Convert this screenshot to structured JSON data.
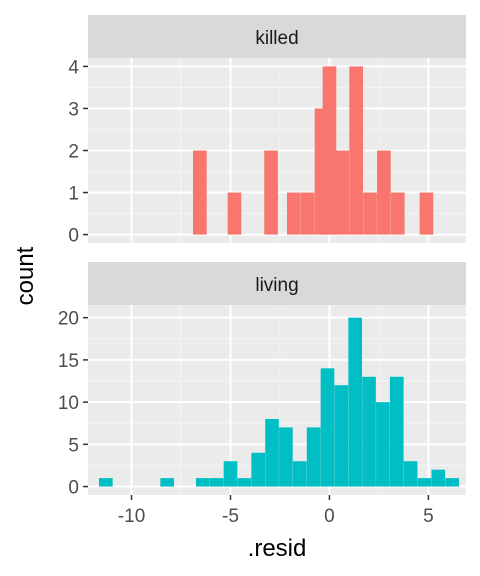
{
  "chart_data": {
    "type": "bar",
    "subtype": "faceted-histogram",
    "xlabel": ".resid",
    "ylabel": "count",
    "xlim": [
      -12.2,
      6.9
    ],
    "x_ticks": [
      -10,
      -5,
      0,
      5
    ],
    "x_tick_labels": [
      "-10",
      "-5",
      "0",
      "5"
    ],
    "bin_width": 0.69,
    "grid": true,
    "panel_background": "#ebebeb",
    "strip_background": "#d9d9d9",
    "facets": [
      {
        "label": "killed",
        "color": "#f8766d",
        "ylim": [
          -0.2,
          4.2
        ],
        "y_ticks": [
          0,
          1,
          2,
          3,
          4
        ],
        "y_tick_labels": [
          "0",
          "1",
          "2",
          "3",
          "4"
        ],
        "bins": [
          {
            "x": -6.55,
            "count": 2
          },
          {
            "x": -4.8,
            "count": 1
          },
          {
            "x": -2.95,
            "count": 2
          },
          {
            "x": -1.8,
            "count": 1
          },
          {
            "x": -1.1,
            "count": 1
          },
          {
            "x": -0.4,
            "count": 3
          },
          {
            "x": 0.0,
            "count": 4
          },
          {
            "x": 0.65,
            "count": 2
          },
          {
            "x": 1.35,
            "count": 4
          },
          {
            "x": 2.05,
            "count": 1
          },
          {
            "x": 2.75,
            "count": 2
          },
          {
            "x": 3.45,
            "count": 1
          },
          {
            "x": 4.9,
            "count": 1
          }
        ]
      },
      {
        "label": "living",
        "color": "#00bfc4",
        "ylim": [
          -1,
          21.5
        ],
        "y_ticks": [
          0,
          5,
          10,
          15,
          20
        ],
        "y_tick_labels": [
          "0",
          "5",
          "10",
          "15",
          "20"
        ],
        "bins": [
          {
            "x": -11.3,
            "count": 1
          },
          {
            "x": -8.2,
            "count": 1
          },
          {
            "x": -6.4,
            "count": 1
          },
          {
            "x": -5.7,
            "count": 1
          },
          {
            "x": -5.0,
            "count": 3
          },
          {
            "x": -4.3,
            "count": 1
          },
          {
            "x": -3.6,
            "count": 4
          },
          {
            "x": -2.9,
            "count": 8
          },
          {
            "x": -2.2,
            "count": 7
          },
          {
            "x": -1.5,
            "count": 3
          },
          {
            "x": -0.8,
            "count": 7
          },
          {
            "x": -0.1,
            "count": 14
          },
          {
            "x": 0.6,
            "count": 12
          },
          {
            "x": 1.3,
            "count": 20
          },
          {
            "x": 2.0,
            "count": 13
          },
          {
            "x": 2.7,
            "count": 10
          },
          {
            "x": 3.4,
            "count": 13
          },
          {
            "x": 4.1,
            "count": 3
          },
          {
            "x": 4.8,
            "count": 1
          },
          {
            "x": 5.5,
            "count": 2
          },
          {
            "x": 6.2,
            "count": 1
          }
        ]
      }
    ]
  }
}
